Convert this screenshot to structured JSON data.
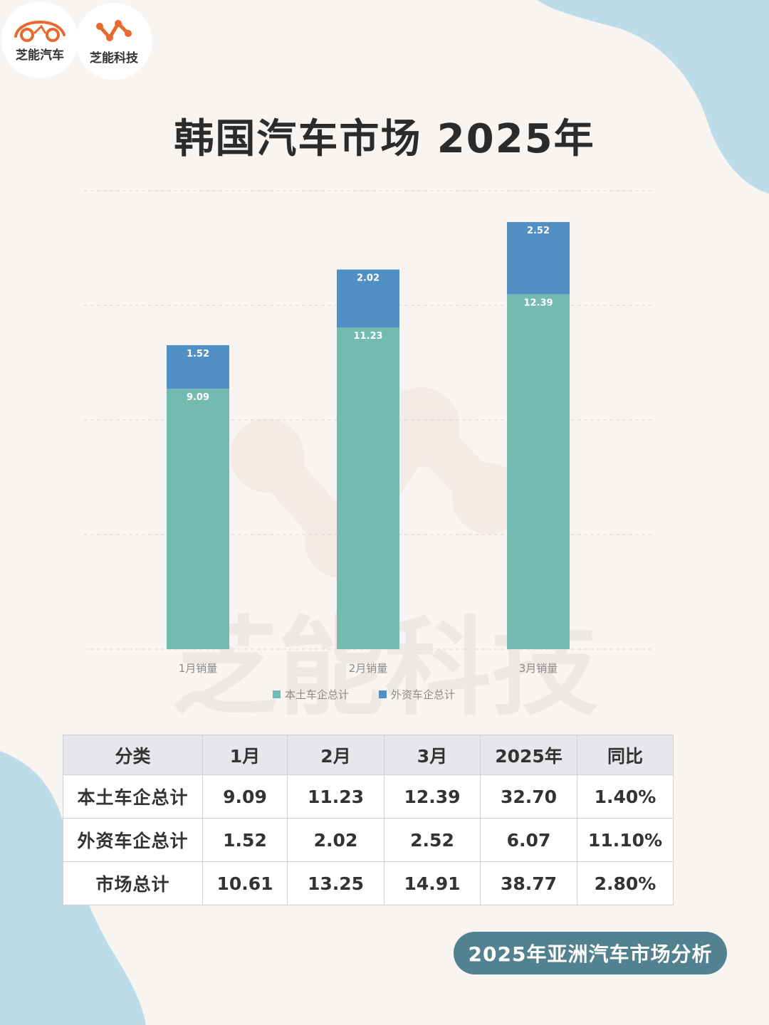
{
  "brand": {
    "logo_left_label": "芝能汽车",
    "logo_right_label": "芝能科技",
    "watermark": "芝能科技"
  },
  "colors": {
    "domestic": "#73bab1",
    "foreign": "#5290c3",
    "background": "#f7f4f2",
    "blob": "#bcdde8",
    "pill": "#52828f",
    "logo_accent": "#e8692e"
  },
  "page_title": "韩国汽车市场 2025年",
  "chart_data": {
    "type": "bar",
    "stacked": true,
    "categories": [
      "1月销量",
      "2月销量",
      "3月销量"
    ],
    "series": [
      {
        "name": "本土车企总计",
        "values": [
          9.09,
          11.23,
          12.39
        ]
      },
      {
        "name": "外资车企总计",
        "values": [
          1.52,
          2.02,
          2.52
        ]
      }
    ],
    "title": "",
    "xlabel": "",
    "ylabel": "",
    "ylim": [
      0,
      16
    ],
    "grid": true,
    "legend_position": "bottom"
  },
  "table": {
    "headers": [
      "分类",
      "1月",
      "2月",
      "3月",
      "2025年",
      "同比"
    ],
    "rows": [
      [
        "本土车企总计",
        "9.09",
        "11.23",
        "12.39",
        "32.70",
        "1.40%"
      ],
      [
        "外资车企总计",
        "1.52",
        "2.02",
        "2.52",
        "6.07",
        "11.10%"
      ],
      [
        "市场总计",
        "10.61",
        "13.25",
        "14.91",
        "38.77",
        "2.80%"
      ]
    ]
  },
  "footer": {
    "tag": "2025年亚洲汽车市场分析"
  }
}
